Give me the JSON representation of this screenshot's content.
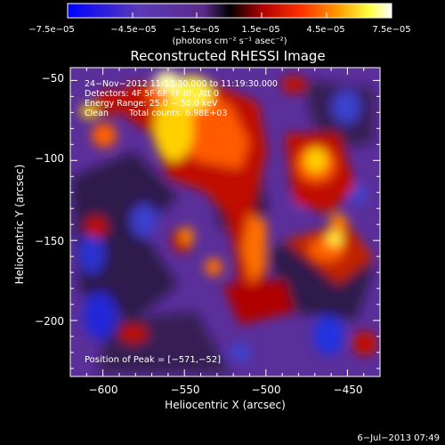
{
  "colorbar": {
    "tick_labels": [
      "−7.5e−05",
      "−4.5e−05",
      "−1.5e−05",
      "1.5e−05",
      "4.5e−05",
      "7.5e−05"
    ],
    "units_label": "(photons cm⁻² s⁻¹ asec⁻²)"
  },
  "title": "Reconstructed RHESSI Image",
  "info": {
    "line1": "24−Nov−2012 11:13:30.000 to 11:19:30.000",
    "line2": "Detectors: 4F 5F 6F 7F 8F, Att 0",
    "line3": "Energy Range: 25.0 − 50.0 keV",
    "line4_a": "Clean",
    "line4_b": "Total counts: 6.98E+03"
  },
  "peak_label": "Position of Peak = [−571,−52]",
  "chart_data": {
    "type": "heatmap",
    "title": "Reconstructed RHESSI Image",
    "xlabel": "Heliocentric X (arcsec)",
    "ylabel": "Heliocentric Y (arcsec)",
    "xlim": [
      -620,
      -430
    ],
    "ylim": [
      -235,
      -42
    ],
    "x_ticks": [
      -600,
      -550,
      -500,
      -450
    ],
    "y_ticks": [
      -200,
      -150,
      -100,
      -50
    ],
    "x_tick_labels": [
      "−600",
      "−550",
      "−500",
      "−450"
    ],
    "y_tick_labels": [
      "−200",
      "−150",
      "−100",
      "−50"
    ],
    "colorbar_range": [
      -7.5e-05,
      7.5e-05
    ],
    "colormap": "rainbow-ish: blue → purple → black → red → orange → yellow → white",
    "peak_position": [
      -571,
      -52
    ]
  },
  "footer_date": "6−Jul−2013 07:49"
}
